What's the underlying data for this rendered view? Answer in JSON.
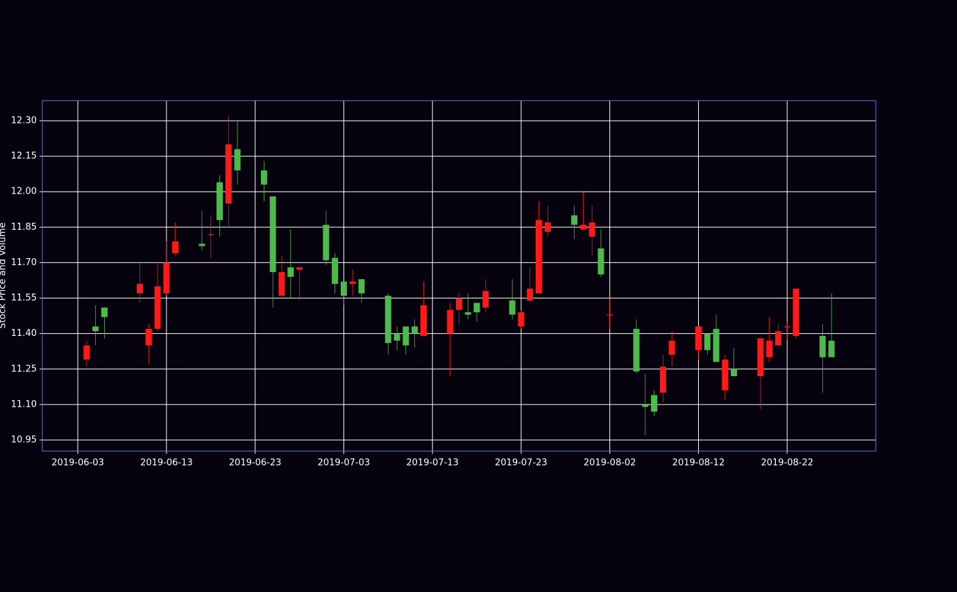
{
  "chart_data": {
    "type": "candlestick",
    "ylabel": "Stock Price and Volume",
    "up_color": "#4cbb4c",
    "down_color": "#ff1a1a",
    "grid": true,
    "x": [
      "2019-06-04",
      "2019-06-05",
      "2019-06-06",
      "2019-06-10",
      "2019-06-11",
      "2019-06-12",
      "2019-06-13",
      "2019-06-14",
      "2019-06-17",
      "2019-06-18",
      "2019-06-19",
      "2019-06-20",
      "2019-06-21",
      "2019-06-24",
      "2019-06-25",
      "2019-06-26",
      "2019-06-27",
      "2019-06-28",
      "2019-07-01",
      "2019-07-02",
      "2019-07-03",
      "2019-07-04",
      "2019-07-05",
      "2019-07-08",
      "2019-07-09",
      "2019-07-10",
      "2019-07-11",
      "2019-07-12",
      "2019-07-15",
      "2019-07-16",
      "2019-07-17",
      "2019-07-18",
      "2019-07-19",
      "2019-07-22",
      "2019-07-23",
      "2019-07-24",
      "2019-07-25",
      "2019-07-26",
      "2019-07-29",
      "2019-07-30",
      "2019-07-31",
      "2019-08-01",
      "2019-08-02",
      "2019-08-05",
      "2019-08-06",
      "2019-08-07",
      "2019-08-08",
      "2019-08-09",
      "2019-08-12",
      "2019-08-13",
      "2019-08-14",
      "2019-08-15",
      "2019-08-16",
      "2019-08-19",
      "2019-08-20",
      "2019-08-21",
      "2019-08-22",
      "2019-08-23",
      "2019-08-26",
      "2019-08-27"
    ],
    "open": [
      11.35,
      11.41,
      11.47,
      11.61,
      11.42,
      11.6,
      11.7,
      11.79,
      11.77,
      11.82,
      11.88,
      12.2,
      12.09,
      12.03,
      11.66,
      11.66,
      11.64,
      11.68,
      11.71,
      11.61,
      11.56,
      11.62,
      11.57,
      11.36,
      11.37,
      11.35,
      11.4,
      11.52,
      11.5,
      11.55,
      11.48,
      11.49,
      11.58,
      11.48,
      11.49,
      11.59,
      11.88,
      11.87,
      11.86,
      11.86,
      11.87,
      11.65,
      11.48,
      11.24,
      11.09,
      11.07,
      11.26,
      11.37,
      11.43,
      11.33,
      11.28,
      11.29,
      11.22,
      11.38,
      11.37,
      11.41,
      11.43,
      11.59,
      11.3,
      11.3
    ],
    "high": [
      11.37,
      11.52,
      11.51,
      11.7,
      11.44,
      11.7,
      11.79,
      11.87,
      11.92,
      11.9,
      12.07,
      12.32,
      12.3,
      12.13,
      11.98,
      11.73,
      11.84,
      11.68,
      11.92,
      11.74,
      11.62,
      11.67,
      11.63,
      11.57,
      11.43,
      11.43,
      11.46,
      11.62,
      11.53,
      11.57,
      11.57,
      11.53,
      11.63,
      11.63,
      11.5,
      11.68,
      11.96,
      11.94,
      11.94,
      12.0,
      11.94,
      11.84,
      11.55,
      11.46,
      11.23,
      11.16,
      11.31,
      11.41,
      11.43,
      11.4,
      11.48,
      11.31,
      11.34,
      11.38,
      11.47,
      11.44,
      11.45,
      11.59,
      11.44,
      11.57
    ],
    "low": [
      11.26,
      11.35,
      11.38,
      11.53,
      11.27,
      11.41,
      11.56,
      11.73,
      11.75,
      11.72,
      11.81,
      11.85,
      12.03,
      11.96,
      11.51,
      11.56,
      11.55,
      11.54,
      11.69,
      11.57,
      11.52,
      11.56,
      11.53,
      11.31,
      11.33,
      11.31,
      11.34,
      11.39,
      11.22,
      11.44,
      11.46,
      11.45,
      11.49,
      11.46,
      11.42,
      11.53,
      11.57,
      11.81,
      11.8,
      11.84,
      11.73,
      11.64,
      11.42,
      11.23,
      10.97,
      11.05,
      11.11,
      11.26,
      11.29,
      11.31,
      11.28,
      11.12,
      11.22,
      11.08,
      11.28,
      11.35,
      11.37,
      11.38,
      11.15,
      11.3
    ],
    "close": [
      11.29,
      11.43,
      11.51,
      11.57,
      11.35,
      11.42,
      11.57,
      11.74,
      11.78,
      11.82,
      12.04,
      11.95,
      12.18,
      12.09,
      11.98,
      11.56,
      11.68,
      11.67,
      11.86,
      11.72,
      11.62,
      11.61,
      11.63,
      11.56,
      11.4,
      11.43,
      11.43,
      11.39,
      11.4,
      11.5,
      11.49,
      11.53,
      11.51,
      11.54,
      11.43,
      11.54,
      11.57,
      11.83,
      11.9,
      11.84,
      11.81,
      11.76,
      11.48,
      11.42,
      11.1,
      11.14,
      11.15,
      11.31,
      11.33,
      11.4,
      11.42,
      11.16,
      11.25,
      11.22,
      11.3,
      11.35,
      11.43,
      11.39,
      11.39,
      11.37
    ],
    "xlim": [
      "2019-05-30",
      "2019-09-01"
    ],
    "xticks": [
      "2019-06-03",
      "2019-06-13",
      "2019-06-23",
      "2019-07-03",
      "2019-07-13",
      "2019-07-23",
      "2019-08-02",
      "2019-08-12",
      "2019-08-22"
    ],
    "ylim": [
      10.903,
      12.385
    ],
    "yticks": [
      {
        "value": 10.95,
        "label": "10.95"
      },
      {
        "value": 11.1,
        "label": "11.10"
      },
      {
        "value": 11.25,
        "label": "11.25"
      },
      {
        "value": 11.4,
        "label": "11.40"
      },
      {
        "value": 11.55,
        "label": "11.55"
      },
      {
        "value": 11.7,
        "label": "11.70"
      },
      {
        "value": 11.85,
        "label": "11.85"
      },
      {
        "value": 12.0,
        "label": "12.00"
      },
      {
        "value": 12.15,
        "label": "12.15"
      },
      {
        "value": 12.3,
        "label": "12.30"
      }
    ]
  }
}
